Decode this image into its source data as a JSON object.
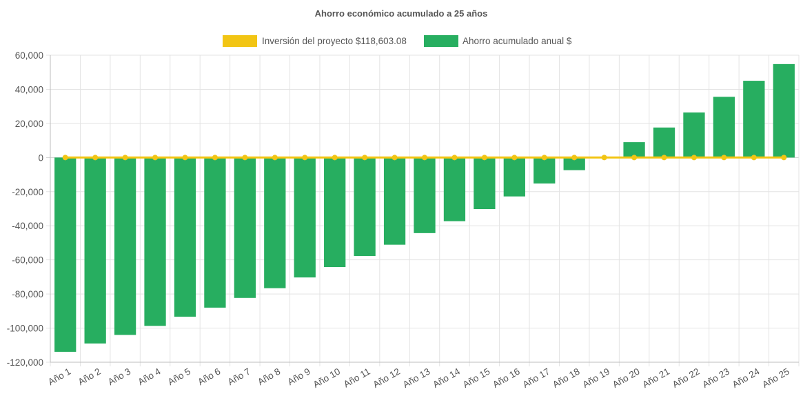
{
  "chart_data": {
    "type": "bar",
    "title": "Ahorro económico acumulado a 25 años",
    "categories": [
      "Año 1",
      "Año 2",
      "Año 3",
      "Año 4",
      "Año 5",
      "Año 6",
      "Año 7",
      "Año 8",
      "Año 9",
      "Año 10",
      "Año 11",
      "Año 12",
      "Año 13",
      "Año 14",
      "Año 15",
      "Año 16",
      "Año 17",
      "Año 18",
      "Año 19",
      "Año 20",
      "Año 21",
      "Año 22",
      "Año 23",
      "Año 24",
      "Año 25"
    ],
    "series": [
      {
        "name": "Inversión del proyecto $118,603.08",
        "render": "line",
        "color": "#f2c514",
        "values": [
          0,
          0,
          0,
          0,
          0,
          0,
          0,
          0,
          0,
          0,
          0,
          0,
          0,
          0,
          0,
          0,
          0,
          0,
          0,
          0,
          0,
          0,
          0,
          0,
          0
        ]
      },
      {
        "name": "Ahorro acumulado anual $",
        "render": "bar",
        "color": "#27ae60",
        "values": [
          -113900,
          -109000,
          -104000,
          -98700,
          -93300,
          -88000,
          -82300,
          -76600,
          -70300,
          -64200,
          -57700,
          -51100,
          -44300,
          -37300,
          -30200,
          -22800,
          -15200,
          -7400,
          0,
          9000,
          17600,
          26400,
          35600,
          45000,
          54800
        ]
      }
    ],
    "yticks": [
      "60,000",
      "40,000",
      "20,000",
      "0",
      "-20,000",
      "-40,000",
      "-60,000",
      "-80,000",
      "-100,000",
      "-120,000"
    ],
    "ylim": [
      -120000,
      60000
    ],
    "grid": true,
    "legend": "top-center",
    "xlabel": "",
    "ylabel": ""
  }
}
